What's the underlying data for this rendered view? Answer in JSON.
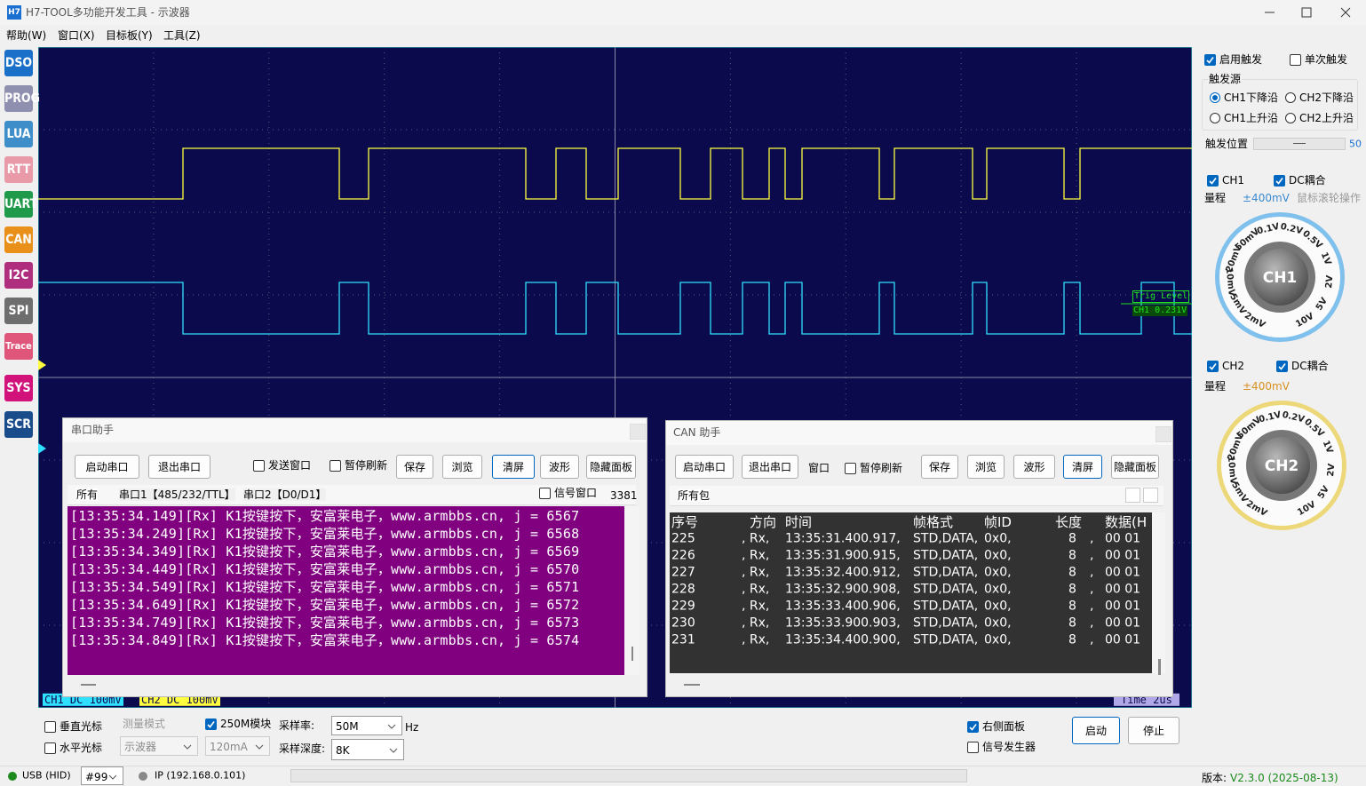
{
  "window": {
    "icon": "H7",
    "title": "H7-TOOL多功能开发工具 - 示波器"
  },
  "menu": [
    "帮助(W)",
    "窗口(X)",
    "目标板(Y)",
    "工具(Z)"
  ],
  "sidebar": [
    "DSO",
    "PROG",
    "LUA",
    "RTT",
    "UART",
    "CAN",
    "I2C",
    "SPI",
    "Trace",
    "SYS",
    "SCR"
  ],
  "scope": {
    "trig_level": "Trig Level",
    "trig_value": "CH1 0.231V",
    "ch1_status": "CH1 DC 100mV",
    "ch2_status": "CH2 DC 100mV",
    "timebase": "Time  2us"
  },
  "serial": {
    "title": "串口助手",
    "buttons": [
      "启动串口",
      "退出串口",
      "保存",
      "浏览",
      "清屏",
      "波形",
      "隐藏面板"
    ],
    "send_window": "发送窗口",
    "pause": "暂停刷新",
    "tabs": [
      "所有",
      "串口1【485/232/TTL】",
      "串口2【D0/D1】"
    ],
    "signal_window": "信号窗口",
    "count": 3381,
    "lines": [
      "[13:35:34.149][Rx] K1按键按下，安富莱电子，www.armbbs.cn, j = 6567",
      "[13:35:34.249][Rx] K1按键按下，安富莱电子，www.armbbs.cn, j = 6568",
      "[13:35:34.349][Rx] K1按键按下，安富莱电子，www.armbbs.cn, j = 6569",
      "[13:35:34.449][Rx] K1按键按下，安富莱电子，www.armbbs.cn, j = 6570",
      "[13:35:34.549][Rx] K1按键按下，安富莱电子，www.armbbs.cn, j = 6571",
      "[13:35:34.649][Rx] K1按键按下，安富莱电子，www.armbbs.cn, j = 6572",
      "[13:35:34.749][Rx] K1按键按下，安富莱电子，www.armbbs.cn, j = 6573",
      "[13:35:34.849][Rx] K1按键按下，安富莱电子，www.armbbs.cn, j = 6574"
    ]
  },
  "can": {
    "title": "CAN 助手",
    "buttons": [
      "启动串口",
      "退出串口",
      "保存",
      "浏览",
      "波形",
      "清屏",
      "隐藏面板"
    ],
    "window_check": "窗口",
    "pause": "暂停刷新",
    "tab": "所有包",
    "columns": [
      "序号",
      "方向",
      "时间",
      "帧格式",
      "帧ID",
      "长度",
      "数据(H"
    ],
    "rows": [
      [
        "225",
        ", Rx,",
        "13:35:31.400.917,",
        "STD,DATA,",
        "0x0,",
        "8",
        ",",
        "00 01"
      ],
      [
        "226",
        ", Rx,",
        "13:35:31.900.915,",
        "STD,DATA,",
        "0x0,",
        "8",
        ",",
        "00 01"
      ],
      [
        "227",
        ", Rx,",
        "13:35:32.400.912,",
        "STD,DATA,",
        "0x0,",
        "8",
        ",",
        "00 01"
      ],
      [
        "228",
        ", Rx,",
        "13:35:32.900.908,",
        "STD,DATA,",
        "0x0,",
        "8",
        ",",
        "00 01"
      ],
      [
        "229",
        ", Rx,",
        "13:35:33.400.906,",
        "STD,DATA,",
        "0x0,",
        "8",
        ",",
        "00 01"
      ],
      [
        "230",
        ", Rx,",
        "13:35:33.900.903,",
        "STD,DATA,",
        "0x0,",
        "8",
        ",",
        "00 01"
      ],
      [
        "231",
        ", Rx,",
        "13:35:34.400.900,",
        "STD,DATA,",
        "0x0,",
        "8",
        ",",
        "00 01"
      ]
    ]
  },
  "trigger": {
    "enable": "启用触发",
    "single": "单次触发",
    "source": "触发源",
    "options": [
      "CH1下降沿",
      "CH2下降沿",
      "CH1上升沿",
      "CH2上升沿"
    ],
    "position": "触发位置",
    "position_value": 50
  },
  "ch1": {
    "name": "CH1",
    "coupling": "DC耦合",
    "range_label": "量程",
    "range": "±400mV",
    "hint": "鼠标滚轮操作",
    "knob_labels": [
      "2mV",
      "5mV",
      "10mV",
      "20mV",
      "50mV",
      "0.1V",
      "0.2V",
      "0.5V",
      "1V",
      "2V",
      "5V",
      "10V"
    ],
    "knob_name": "CH1"
  },
  "ch2": {
    "name": "CH2",
    "coupling": "DC耦合",
    "range_label": "量程",
    "range": "±400mV",
    "knob_labels": [
      "2mV",
      "5mV",
      "10mV",
      "20mV",
      "50mV",
      "0.1V",
      "0.2V",
      "0.5V",
      "1V",
      "2V",
      "5V",
      "10V"
    ],
    "knob_name": "CH2"
  },
  "controls": {
    "vcursor": "垂直光标",
    "hcursor": "水平光标",
    "measure_mode": "测量模式",
    "mode": "示波器",
    "module": "250M模块",
    "current": "120mA",
    "rate_label": "采样率:",
    "rate": "50M",
    "rate_unit": "Hz",
    "depth_label": "采样深度:",
    "depth": "8K",
    "right_panel": "右侧面板",
    "siggen": "信号发生器",
    "start": "启动",
    "stop": "停止"
  },
  "status": {
    "usb": "USB (HID)",
    "port": "#99",
    "ip": "IP (192.168.0.101)",
    "version_label": "版本: ",
    "version": "V2.3.0 (2025-08-13)"
  }
}
